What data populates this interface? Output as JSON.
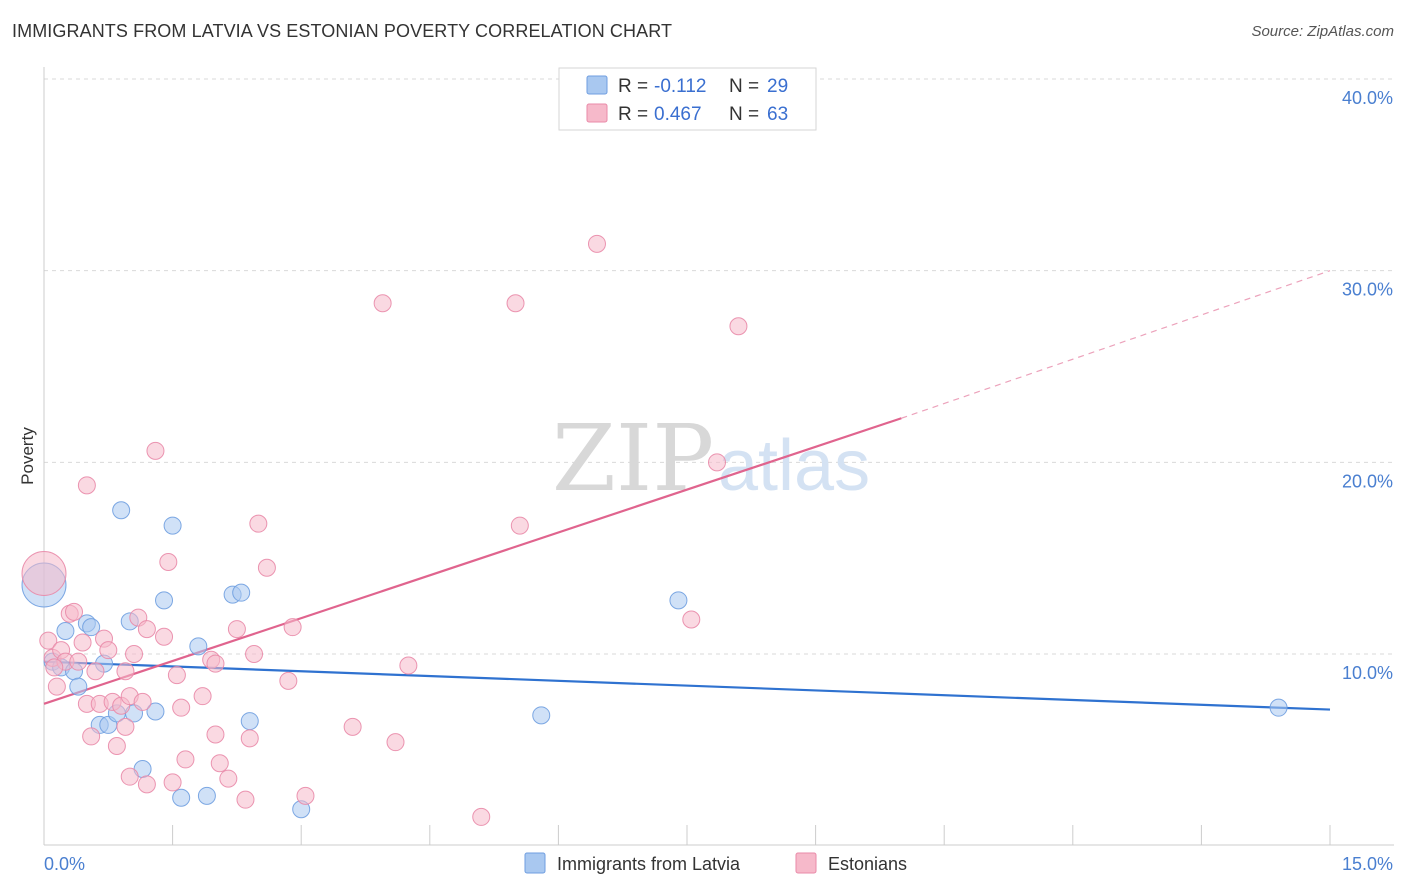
{
  "header": {
    "title": "IMMIGRANTS FROM LATVIA VS ESTONIAN POVERTY CORRELATION CHART",
    "source": "Source: ZipAtlas.com"
  },
  "watermark": {
    "zip": "ZIP",
    "atlas": "atlas"
  },
  "colors": {
    "latvia_fill": "#a9c8f0",
    "latvia_stroke": "#6f9ee0",
    "latvia_line": "#2f72d0",
    "estonia_fill": "#f6b9ca",
    "estonia_stroke": "#e98aa8",
    "estonia_line": "#e0648e",
    "tick_text": "#4a7fd0"
  },
  "legend": {
    "rows": [
      {
        "r_label": "R = ",
        "r_value": "-0.112",
        "n_label": "N = ",
        "n_value": "29",
        "series": "latvia"
      },
      {
        "r_label": "R = ",
        "r_value": "0.467",
        "n_label": "N = ",
        "n_value": "63",
        "series": "estonia"
      }
    ]
  },
  "bottom_legend": {
    "latvia": "Immigrants from Latvia",
    "estonia": "Estonians"
  },
  "chart_data": {
    "type": "scatter",
    "title": "IMMIGRANTS FROM LATVIA VS ESTONIAN POVERTY CORRELATION CHART",
    "xlabel": "",
    "ylabel": "Poverty",
    "xlim": [
      0,
      15
    ],
    "ylim": [
      0,
      40
    ],
    "x_tick_labels": [
      "0.0%",
      "15.0%"
    ],
    "y_ticks": [
      10,
      20,
      30,
      40
    ],
    "y_tick_labels": [
      "10.0%",
      "20.0%",
      "30.0%",
      "40.0%"
    ],
    "grid": true,
    "series": [
      {
        "name": "Immigrants from Latvia",
        "key": "latvia",
        "R": -0.112,
        "N": 29,
        "trend": {
          "x0": 0.0,
          "y0": 9.6,
          "x1": 15.0,
          "y1": 7.1
        },
        "points": [
          {
            "x": 0.0,
            "y": 13.6,
            "big": true
          },
          {
            "x": 0.1,
            "y": 9.6
          },
          {
            "x": 0.2,
            "y": 9.3
          },
          {
            "x": 0.25,
            "y": 11.2
          },
          {
            "x": 0.35,
            "y": 9.1
          },
          {
            "x": 0.4,
            "y": 8.3
          },
          {
            "x": 0.5,
            "y": 11.6
          },
          {
            "x": 0.55,
            "y": 11.4
          },
          {
            "x": 0.65,
            "y": 6.3
          },
          {
            "x": 0.7,
            "y": 9.5
          },
          {
            "x": 0.75,
            "y": 6.3
          },
          {
            "x": 0.85,
            "y": 6.9
          },
          {
            "x": 0.9,
            "y": 17.5
          },
          {
            "x": 1.0,
            "y": 11.7
          },
          {
            "x": 1.05,
            "y": 6.9
          },
          {
            "x": 1.15,
            "y": 4.0
          },
          {
            "x": 1.3,
            "y": 7.0
          },
          {
            "x": 1.4,
            "y": 12.8
          },
          {
            "x": 1.5,
            "y": 16.7
          },
          {
            "x": 1.6,
            "y": 2.5
          },
          {
            "x": 1.8,
            "y": 10.4
          },
          {
            "x": 1.9,
            "y": 2.6
          },
          {
            "x": 2.2,
            "y": 13.1
          },
          {
            "x": 2.3,
            "y": 13.2
          },
          {
            "x": 2.4,
            "y": 6.5
          },
          {
            "x": 3.0,
            "y": 1.9
          },
          {
            "x": 5.8,
            "y": 6.8
          },
          {
            "x": 7.4,
            "y": 12.8
          },
          {
            "x": 14.4,
            "y": 7.2
          }
        ]
      },
      {
        "name": "Estonians",
        "key": "estonia",
        "R": 0.467,
        "N": 63,
        "trend": {
          "x0": 0.0,
          "y0": 7.4,
          "x1": 10.0,
          "y1": 22.3
        },
        "trend_dashed_to": {
          "x": 15.0,
          "y": 30.0
        },
        "points": [
          {
            "x": 0.0,
            "y": 14.2,
            "big": true
          },
          {
            "x": 0.05,
            "y": 10.7
          },
          {
            "x": 0.1,
            "y": 9.8
          },
          {
            "x": 0.15,
            "y": 8.3
          },
          {
            "x": 0.2,
            "y": 10.2
          },
          {
            "x": 0.25,
            "y": 9.6
          },
          {
            "x": 0.3,
            "y": 12.1
          },
          {
            "x": 0.35,
            "y": 12.2
          },
          {
            "x": 0.4,
            "y": 9.6
          },
          {
            "x": 0.45,
            "y": 10.6
          },
          {
            "x": 0.5,
            "y": 7.4
          },
          {
            "x": 0.5,
            "y": 18.8
          },
          {
            "x": 0.55,
            "y": 5.7
          },
          {
            "x": 0.6,
            "y": 9.1
          },
          {
            "x": 0.65,
            "y": 7.4
          },
          {
            "x": 0.7,
            "y": 10.8
          },
          {
            "x": 0.75,
            "y": 10.2
          },
          {
            "x": 0.8,
            "y": 7.5
          },
          {
            "x": 0.85,
            "y": 5.2
          },
          {
            "x": 0.9,
            "y": 7.3
          },
          {
            "x": 0.95,
            "y": 9.1
          },
          {
            "x": 0.95,
            "y": 6.2
          },
          {
            "x": 1.0,
            "y": 7.8
          },
          {
            "x": 1.0,
            "y": 3.6
          },
          {
            "x": 1.05,
            "y": 10.0
          },
          {
            "x": 1.1,
            "y": 11.9
          },
          {
            "x": 1.15,
            "y": 7.5
          },
          {
            "x": 1.2,
            "y": 3.2
          },
          {
            "x": 1.2,
            "y": 11.3
          },
          {
            "x": 1.3,
            "y": 20.6
          },
          {
            "x": 1.4,
            "y": 10.9
          },
          {
            "x": 1.45,
            "y": 14.8
          },
          {
            "x": 1.5,
            "y": 3.3
          },
          {
            "x": 1.55,
            "y": 8.9
          },
          {
            "x": 1.6,
            "y": 7.2
          },
          {
            "x": 1.65,
            "y": 4.5
          },
          {
            "x": 1.85,
            "y": 7.8
          },
          {
            "x": 1.95,
            "y": 9.7
          },
          {
            "x": 2.0,
            "y": 9.5
          },
          {
            "x": 2.0,
            "y": 5.8
          },
          {
            "x": 2.05,
            "y": 4.3
          },
          {
            "x": 2.15,
            "y": 3.5
          },
          {
            "x": 2.25,
            "y": 11.3
          },
          {
            "x": 2.35,
            "y": 2.4
          },
          {
            "x": 2.4,
            "y": 5.6
          },
          {
            "x": 2.45,
            "y": 10.0
          },
          {
            "x": 2.5,
            "y": 16.8
          },
          {
            "x": 2.6,
            "y": 14.5
          },
          {
            "x": 2.85,
            "y": 8.6
          },
          {
            "x": 2.9,
            "y": 11.4
          },
          {
            "x": 3.05,
            "y": 2.6
          },
          {
            "x": 3.6,
            "y": 6.2
          },
          {
            "x": 3.95,
            "y": 28.3
          },
          {
            "x": 4.1,
            "y": 5.4
          },
          {
            "x": 4.25,
            "y": 9.4
          },
          {
            "x": 5.1,
            "y": 1.5
          },
          {
            "x": 5.5,
            "y": 28.3
          },
          {
            "x": 5.55,
            "y": 16.7
          },
          {
            "x": 6.45,
            "y": 31.4
          },
          {
            "x": 7.55,
            "y": 11.8
          },
          {
            "x": 7.85,
            "y": 20.0
          },
          {
            "x": 8.1,
            "y": 27.1
          },
          {
            "x": 0.12,
            "y": 9.3
          }
        ]
      }
    ]
  }
}
